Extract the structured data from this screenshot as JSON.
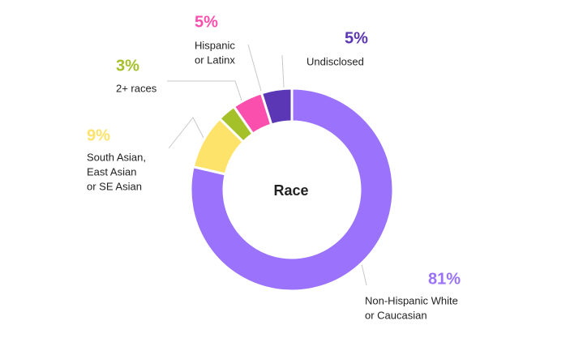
{
  "chart_data": {
    "type": "donut",
    "title": "Race",
    "categories": [
      [
        "Non-Hispanic White",
        "or Caucasian"
      ],
      [
        "South Asian,",
        "East Asian",
        "or SE Asian"
      ],
      [
        "2+ races"
      ],
      [
        "Hispanic",
        "or Latinx"
      ],
      [
        "Undisclosed"
      ]
    ],
    "values": [
      81,
      9,
      3,
      5,
      5
    ],
    "value_labels": [
      "81%",
      "9%",
      "3%",
      "5%",
      "5%"
    ],
    "colors": [
      "#9b72fb",
      "#fde36a",
      "#a5c12a",
      "#fb4fae",
      "#5b36b5"
    ]
  }
}
